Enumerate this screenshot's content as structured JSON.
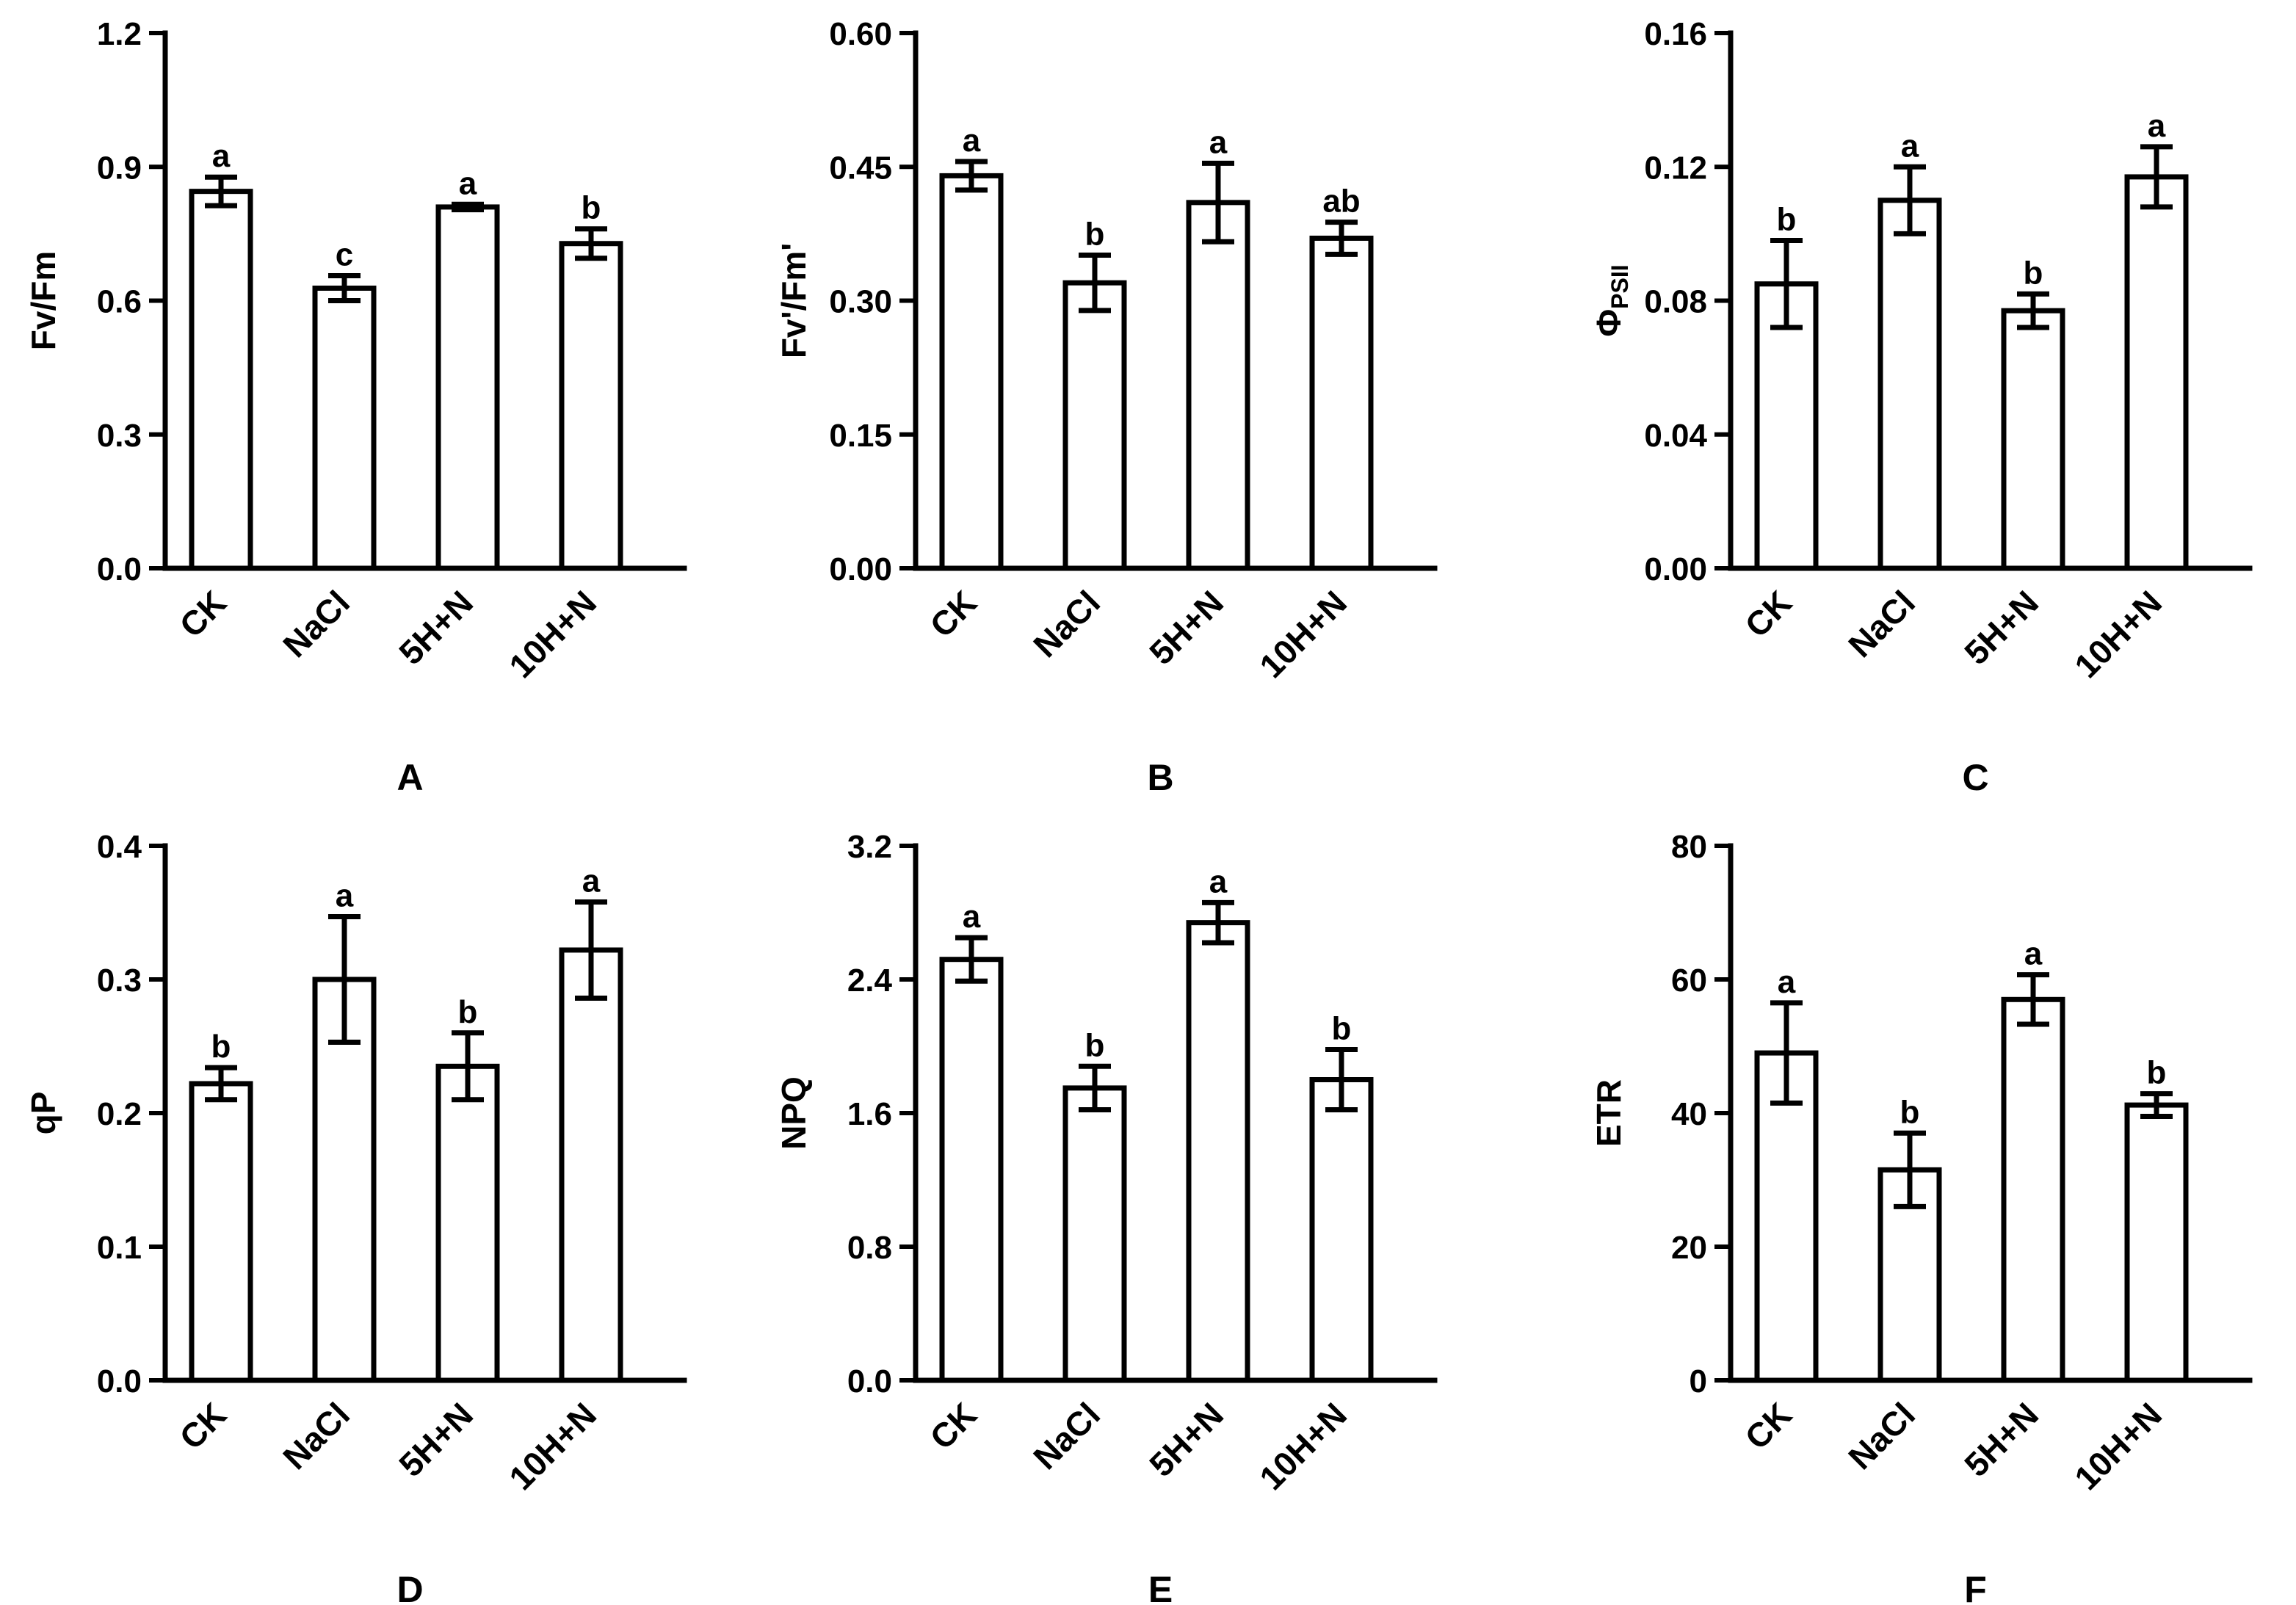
{
  "figure": {
    "categories": [
      "CK",
      "NaCl",
      "5H+N",
      "10H+N"
    ]
  },
  "chart_data": [
    {
      "type": "bar",
      "panel": "A",
      "ylabel": "Fv/Fm",
      "ylim": [
        0,
        1.2
      ],
      "yticks": [
        "0.0",
        "0.3",
        "0.6",
        "0.9",
        "1.2"
      ],
      "categories": [
        "CK",
        "NaCl",
        "5H+N",
        "10H+N"
      ],
      "values": [
        0.845,
        0.628,
        0.81,
        0.728
      ],
      "errors": [
        0.032,
        0.028,
        0.006,
        0.033
      ],
      "significance": [
        "a",
        "c",
        "a",
        "b"
      ]
    },
    {
      "type": "bar",
      "panel": "B",
      "ylabel": "Fv'/Fm'",
      "ylim": [
        0,
        0.6
      ],
      "yticks": [
        "0.00",
        "0.15",
        "0.30",
        "0.45",
        "0.60"
      ],
      "categories": [
        "CK",
        "NaCl",
        "5H+N",
        "10H+N"
      ],
      "values": [
        0.44,
        0.32,
        0.41,
        0.37
      ],
      "errors": [
        0.016,
        0.031,
        0.044,
        0.018
      ],
      "significance": [
        "a",
        "b",
        "a",
        "ab"
      ]
    },
    {
      "type": "bar",
      "panel": "C",
      "ylabel": "ΦPSII",
      "ylabel_main": "Φ",
      "ylabel_sub": "PSII",
      "ylim": [
        0,
        0.16
      ],
      "yticks": [
        "0.00",
        "0.04",
        "0.08",
        "0.12",
        "0.16"
      ],
      "categories": [
        "CK",
        "NaCl",
        "5H+N",
        "10H+N"
      ],
      "values": [
        0.085,
        0.11,
        0.077,
        0.117
      ],
      "errors": [
        0.013,
        0.01,
        0.005,
        0.009
      ],
      "significance": [
        "b",
        "a",
        "b",
        "a"
      ]
    },
    {
      "type": "bar",
      "panel": "D",
      "ylabel": "qP",
      "ylim": [
        0,
        0.4
      ],
      "yticks": [
        "0.0",
        "0.1",
        "0.2",
        "0.3",
        "0.4"
      ],
      "categories": [
        "CK",
        "NaCl",
        "5H+N",
        "10H+N"
      ],
      "values": [
        0.222,
        0.3,
        0.235,
        0.322
      ],
      "errors": [
        0.012,
        0.047,
        0.025,
        0.036
      ],
      "significance": [
        "b",
        "a",
        "b",
        "a"
      ]
    },
    {
      "type": "bar",
      "panel": "E",
      "ylabel": "NPQ",
      "ylim": [
        0,
        3.2
      ],
      "yticks": [
        "0.0",
        "0.8",
        "1.6",
        "2.4",
        "3.2"
      ],
      "categories": [
        "CK",
        "NaCl",
        "5H+N",
        "10H+N"
      ],
      "values": [
        2.52,
        1.75,
        2.74,
        1.8
      ],
      "errors": [
        0.13,
        0.13,
        0.12,
        0.18
      ],
      "significance": [
        "a",
        "b",
        "a",
        "b"
      ]
    },
    {
      "type": "bar",
      "panel": "F",
      "ylabel": "ETR",
      "ylim": [
        0,
        80
      ],
      "yticks": [
        "0",
        "20",
        "40",
        "60",
        "80"
      ],
      "categories": [
        "CK",
        "NaCl",
        "5H+N",
        "10H+N"
      ],
      "values": [
        49,
        31.5,
        57,
        41.2
      ],
      "errors": [
        7.5,
        5.5,
        3.7,
        1.7
      ],
      "significance": [
        "a",
        "b",
        "a",
        "b"
      ]
    }
  ]
}
